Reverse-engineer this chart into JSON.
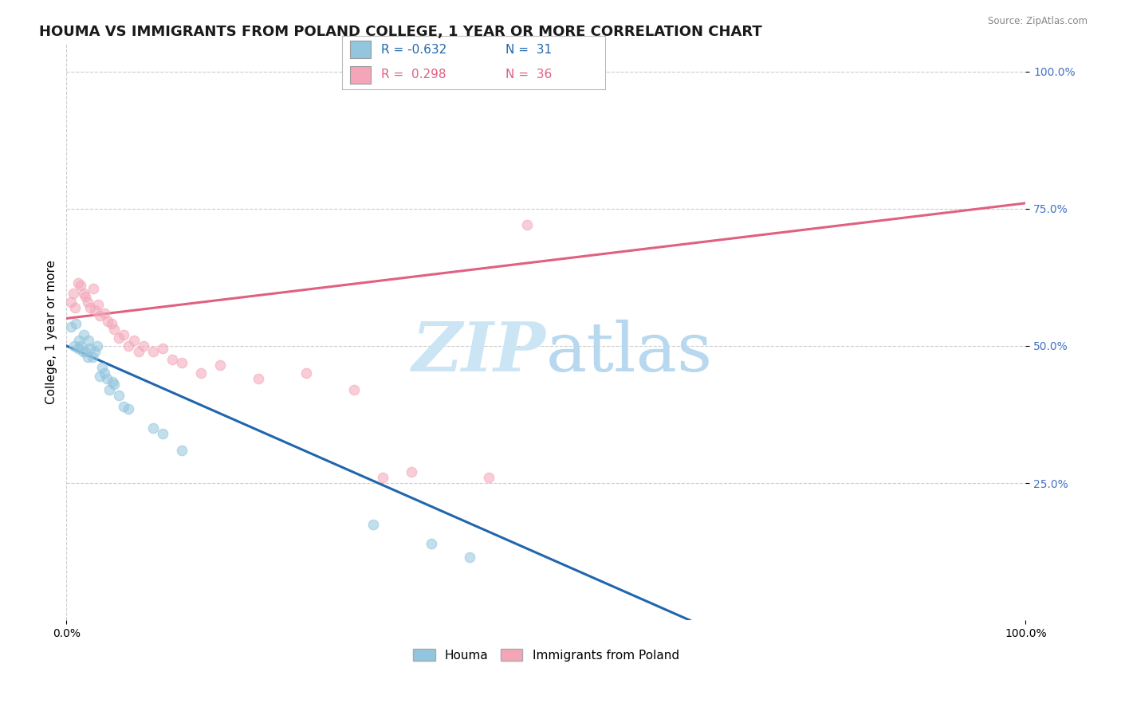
{
  "title": "HOUMA VS IMMIGRANTS FROM POLAND COLLEGE, 1 YEAR OR MORE CORRELATION CHART",
  "source": "Source: ZipAtlas.com",
  "ylabel": "College, 1 year or more",
  "legend_labels": [
    "Houma",
    "Immigrants from Poland"
  ],
  "watermark_zip": "ZIP",
  "watermark_atlas": "atlas",
  "blue_color": "#92c5de",
  "pink_color": "#f4a5b8",
  "blue_line_color": "#2166ac",
  "pink_line_color": "#e06080",
  "ytick_values": [
    0.25,
    0.5,
    0.75,
    1.0
  ],
  "blue_scatter_x": [
    0.005,
    0.008,
    0.01,
    0.012,
    0.013,
    0.015,
    0.017,
    0.018,
    0.02,
    0.022,
    0.023,
    0.025,
    0.027,
    0.03,
    0.032,
    0.035,
    0.037,
    0.04,
    0.042,
    0.045,
    0.048,
    0.05,
    0.055,
    0.06,
    0.065,
    0.09,
    0.1,
    0.12,
    0.32,
    0.38,
    0.42
  ],
  "blue_scatter_y": [
    0.535,
    0.5,
    0.54,
    0.495,
    0.51,
    0.5,
    0.49,
    0.52,
    0.49,
    0.48,
    0.51,
    0.495,
    0.48,
    0.49,
    0.5,
    0.445,
    0.46,
    0.45,
    0.44,
    0.42,
    0.435,
    0.43,
    0.41,
    0.39,
    0.385,
    0.35,
    0.34,
    0.31,
    0.175,
    0.14,
    0.115
  ],
  "pink_scatter_x": [
    0.005,
    0.007,
    0.009,
    0.012,
    0.015,
    0.018,
    0.02,
    0.022,
    0.025,
    0.028,
    0.03,
    0.033,
    0.035,
    0.04,
    0.043,
    0.047,
    0.05,
    0.055,
    0.06,
    0.065,
    0.07,
    0.075,
    0.08,
    0.09,
    0.1,
    0.11,
    0.12,
    0.14,
    0.16,
    0.2,
    0.25,
    0.3,
    0.33,
    0.36,
    0.44,
    0.48
  ],
  "pink_scatter_y": [
    0.58,
    0.595,
    0.57,
    0.615,
    0.61,
    0.595,
    0.59,
    0.58,
    0.57,
    0.605,
    0.565,
    0.575,
    0.555,
    0.56,
    0.545,
    0.54,
    0.53,
    0.515,
    0.52,
    0.5,
    0.51,
    0.49,
    0.5,
    0.49,
    0.495,
    0.475,
    0.47,
    0.45,
    0.465,
    0.44,
    0.45,
    0.42,
    0.26,
    0.27,
    0.26,
    0.72
  ],
  "blue_line_x": [
    0.0,
    0.65
  ],
  "blue_line_y": [
    0.5,
    0.0
  ],
  "pink_line_x": [
    0.0,
    1.0
  ],
  "pink_line_y": [
    0.55,
    0.76
  ],
  "xlim": [
    0.0,
    1.0
  ],
  "ylim": [
    0.0,
    1.05
  ],
  "background_color": "#ffffff",
  "grid_color": "#cccccc",
  "title_fontsize": 13,
  "axis_label_fontsize": 11,
  "tick_fontsize": 10,
  "legend_fontsize": 11,
  "scatter_size": 80,
  "scatter_alpha": 0.55,
  "scatter_edgewidth": 1.0
}
